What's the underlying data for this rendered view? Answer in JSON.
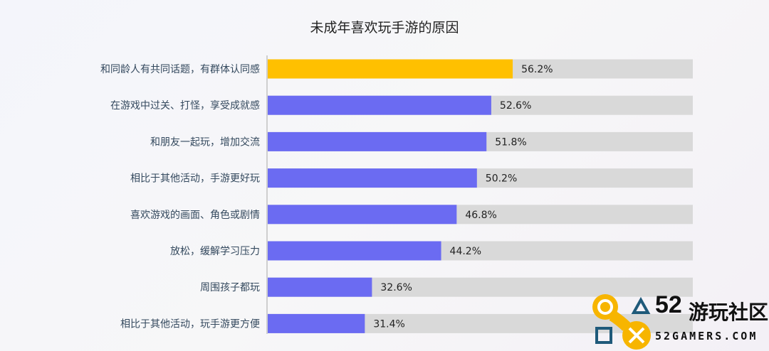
{
  "chart_data": {
    "type": "bar",
    "orientation": "horizontal",
    "title": "未成年喜欢玩手游的原因",
    "categories": [
      "和同龄人有共同话题，有群体认同感",
      "在游戏中过关、打怪，享受成就感",
      "和朋友一起玩，增加交流",
      "相比于其他活动，手游更好玩",
      "喜欢游戏的画面、角色或剧情",
      "放松，缓解学习压力",
      "周围孩子都玩",
      "相比于其他活动，玩手游更方便"
    ],
    "values": [
      56.2,
      52.6,
      51.8,
      50.2,
      46.8,
      44.2,
      32.6,
      31.4
    ],
    "labels": [
      "56.2%",
      "52.6%",
      "51.8%",
      "50.2%",
      "46.8%",
      "44.2%",
      "32.6%",
      "31.4%"
    ],
    "xlim": [
      15,
      86.4
    ],
    "colors": {
      "highlight": "#ffc000",
      "bar": "#6b6bf2",
      "track": "#d9d9d9",
      "label": "#34495e"
    }
  },
  "watermark": {
    "number": "52",
    "name": "游玩社区",
    "site": "52GAMERS.COM"
  }
}
